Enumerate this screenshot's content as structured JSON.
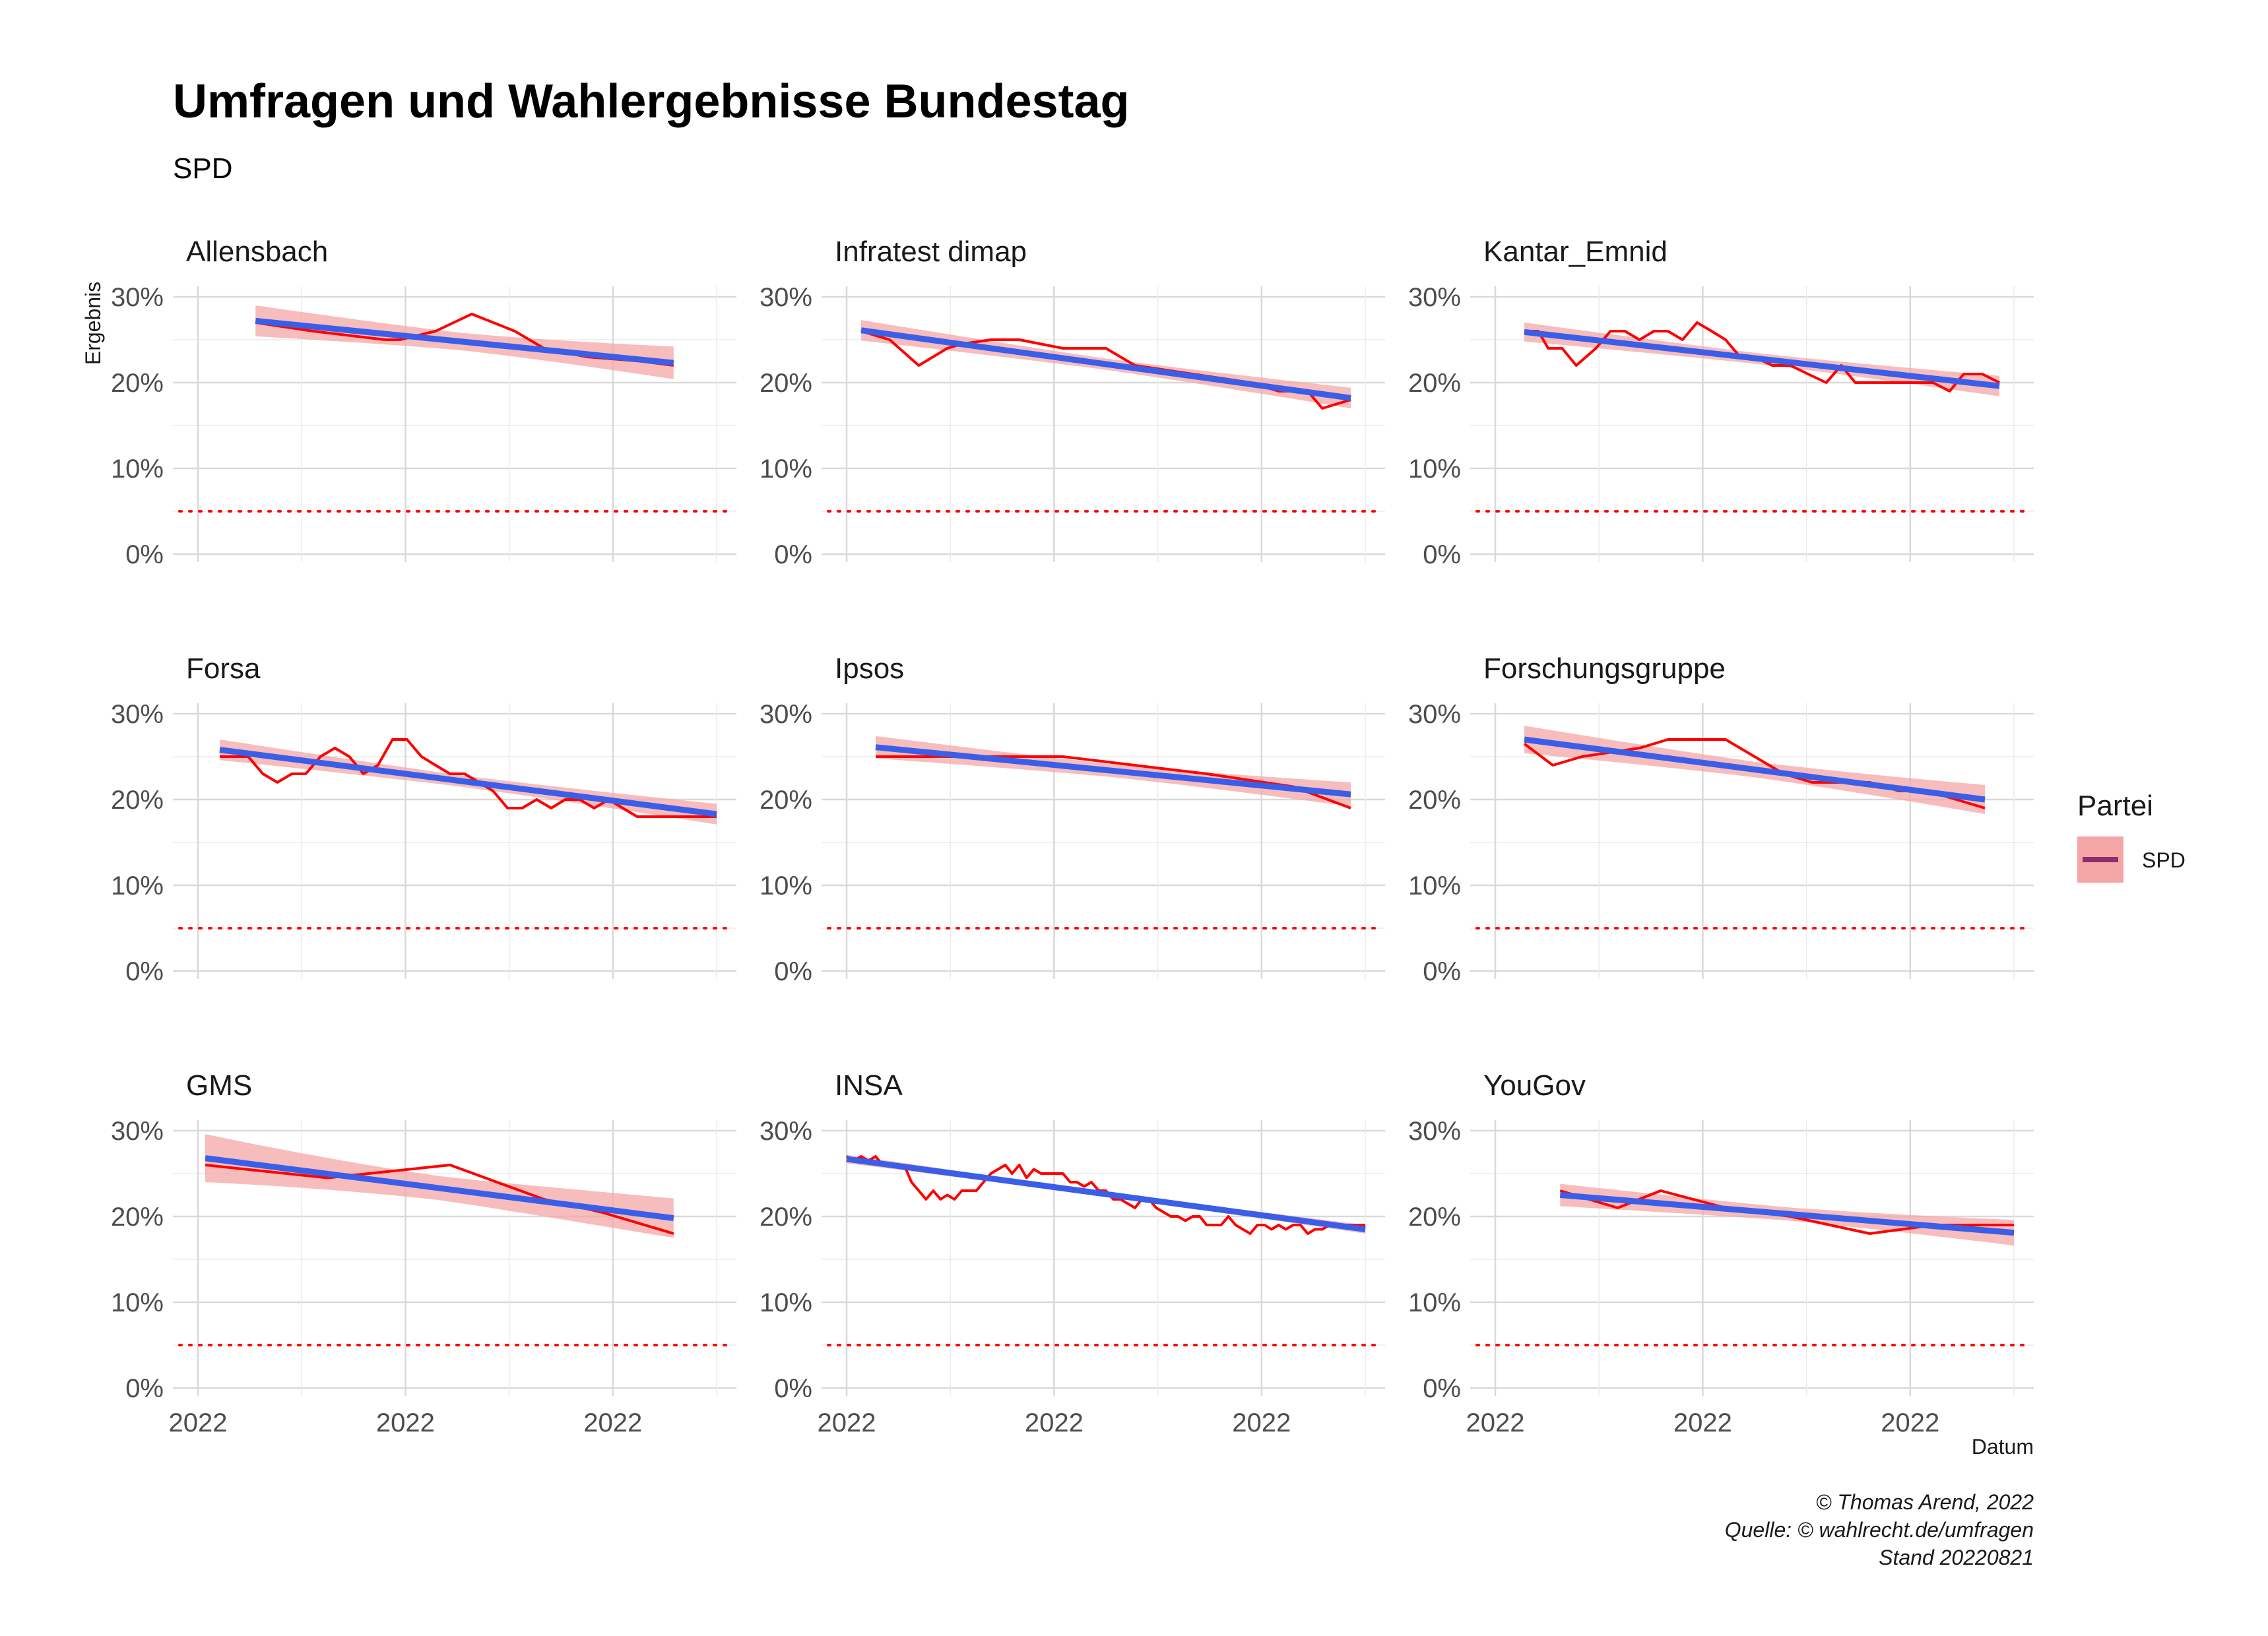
{
  "header": {
    "title": "Umfragen und Wahlergebnisse Bundestag",
    "subtitle": "SPD"
  },
  "caption": {
    "line1": "© Thomas Arend, 2022",
    "line2": "Quelle: © wahlrecht.de/umfragen",
    "line3": "Stand 20220821"
  },
  "legend": {
    "title": "Partei",
    "label": "SPD"
  },
  "colors": {
    "poll_line": "#ff0000",
    "trend_line": "#3a5ee8",
    "confidence_band": "#f4a6a6",
    "threshold_line": "#ff0000",
    "legend_key_line": "#8b2e6b",
    "grid_major": "#d9d9d9",
    "grid_minor": "#ebebeb"
  },
  "chart_data": {
    "type": "line",
    "xlabel": "Datum",
    "ylabel": "Ergebnis",
    "ylim": [
      0,
      30
    ],
    "x_domain": [
      0,
      100
    ],
    "y_ticks": [
      "0%",
      "10%",
      "20%",
      "30%"
    ],
    "x_tick_labels": [
      "2022",
      "2022",
      "2022"
    ],
    "threshold": 5,
    "grid": true,
    "legend_position": "right",
    "facets": [
      {
        "name": "Allensbach",
        "x": [
          11.1,
          22.2,
          36.1,
          38.9,
          45.8,
          52.8,
          61.1,
          66.7,
          75,
          85.3,
          91.7
        ],
        "y": [
          27,
          26,
          25,
          25,
          26,
          28,
          26,
          24,
          23,
          22.5,
          22
        ],
        "trend": [
          27.2,
          22.3
        ],
        "band_halfwidth": [
          1.8,
          1.9
        ],
        "x_range": [
          11.1,
          91.7
        ]
      },
      {
        "name": "Infratest dimap",
        "x": [
          2.8,
          8.3,
          13.9,
          19.4,
          22.2,
          27.8,
          33.3,
          41.7,
          50,
          55.6,
          66.7,
          77.8,
          83.3,
          88.9,
          91.7,
          97.2
        ],
        "y": [
          26,
          25,
          22,
          24,
          24.5,
          25,
          25,
          24,
          24,
          22,
          21,
          20,
          19,
          19,
          17,
          18
        ],
        "trend": [
          26.1,
          18.2
        ],
        "band_halfwidth": [
          1.2,
          1.2
        ],
        "x_range": [
          2.8,
          97.2
        ]
      },
      {
        "name": "Kantar_Emnid",
        "x": [
          5.6,
          8.3,
          10.2,
          12.9,
          15.6,
          19.4,
          22.2,
          25,
          27.8,
          30.6,
          33.3,
          36.1,
          38.9,
          41.7,
          44.4,
          47.2,
          50,
          53.4,
          56.9,
          60.3,
          63.8,
          66.7,
          69.4,
          72.2,
          76.4,
          80.6,
          84.4,
          87.6,
          90.3,
          93.9,
          97.2
        ],
        "y": [
          26,
          26,
          24,
          24,
          22,
          24,
          26,
          26,
          25,
          26,
          26,
          25,
          27,
          26,
          25,
          23,
          23,
          22,
          22,
          21,
          20,
          22,
          20,
          20,
          20,
          20,
          20,
          19,
          21,
          21,
          20
        ],
        "trend": [
          25.9,
          19.6
        ],
        "band_halfwidth": [
          1.1,
          1.2
        ],
        "x_range": [
          5.6,
          97.2
        ]
      },
      {
        "name": "Forsa",
        "x": [
          4.2,
          6.9,
          9.7,
          12.5,
          15.3,
          18.1,
          20.8,
          23.6,
          26.4,
          29.2,
          31.9,
          34.7,
          37.5,
          40.3,
          43.1,
          45.8,
          48.6,
          51.4,
          54.2,
          56.9,
          59.7,
          62.5,
          65.3,
          68.1,
          70.8,
          73.6,
          76.4,
          79.2,
          81.9,
          84.7,
          87.5,
          90.3,
          93.1,
          95.8,
          100
        ],
        "y": [
          25,
          25,
          25,
          23,
          22,
          23,
          23,
          25,
          26,
          25,
          23,
          24,
          27,
          27,
          25,
          24,
          23,
          23,
          22,
          21,
          19,
          19,
          20,
          19,
          20,
          20,
          19,
          20,
          19,
          18,
          18,
          18,
          18,
          18,
          18
        ],
        "trend": [
          25.8,
          18.3
        ],
        "band_halfwidth": [
          1.2,
          1.2
        ],
        "x_range": [
          4.2,
          100
        ]
      },
      {
        "name": "Ipsos",
        "x": [
          5.6,
          41.7,
          69.4,
          86.1,
          97.2
        ],
        "y": [
          25,
          25,
          23,
          21.5,
          19
        ],
        "trend": [
          26.1,
          20.6
        ],
        "band_halfwidth": [
          1.3,
          1.4
        ],
        "x_range": [
          5.6,
          97.2
        ]
      },
      {
        "name": "Forschungsgruppe",
        "x": [
          5.6,
          11.1,
          16.7,
          22.2,
          27.8,
          33.3,
          38.9,
          44.4,
          50,
          55.6,
          61.1,
          66.7,
          72.2,
          77.8,
          83.3,
          88.9,
          94.4
        ],
        "y": [
          26.5,
          24,
          25,
          25.5,
          26,
          27,
          27,
          27,
          25,
          23,
          22,
          22,
          22,
          21,
          21,
          20,
          19
        ],
        "trend": [
          27,
          20
        ],
        "band_halfwidth": [
          1.6,
          1.7
        ],
        "x_range": [
          5.6,
          94.4
        ]
      },
      {
        "name": "GMS",
        "x": [
          1.4,
          25,
          48.6,
          66.7,
          77.8,
          91.7
        ],
        "y": [
          26,
          24.5,
          26,
          22,
          20.5,
          18
        ],
        "trend": [
          26.8,
          19.8
        ],
        "band_halfwidth": [
          2.8,
          2.3
        ],
        "x_range": [
          1.4,
          91.7
        ]
      },
      {
        "name": "INSA",
        "x": [
          0,
          1.4,
          2.8,
          4.2,
          5.6,
          6.9,
          8.3,
          9.7,
          11.1,
          12.5,
          13.9,
          15.3,
          16.7,
          18.1,
          19.4,
          20.8,
          22.2,
          25,
          27.8,
          29.2,
          30.6,
          31.9,
          33.3,
          34.7,
          36.1,
          37.5,
          38.9,
          40.3,
          41.7,
          43.1,
          44.4,
          45.8,
          47.2,
          48.6,
          50,
          51.4,
          52.8,
          54.2,
          55.6,
          56.9,
          58.3,
          59.7,
          61.1,
          62.5,
          63.9,
          65.3,
          66.7,
          68.1,
          69.4,
          70.8,
          72.2,
          73.6,
          75,
          76.4,
          77.8,
          79.2,
          80.6,
          81.9,
          83.3,
          84.7,
          86.1,
          87.5,
          88.9,
          90.3,
          91.7,
          93.1,
          94.4,
          95.8,
          97.2,
          100
        ],
        "y": [
          27,
          26.5,
          27,
          26.5,
          27,
          26,
          26,
          26,
          26,
          24,
          23,
          22,
          23,
          22,
          22.5,
          22,
          23,
          23,
          25,
          25.5,
          26,
          25,
          26,
          24.5,
          25.5,
          25,
          25,
          25,
          25,
          24,
          24,
          23.5,
          24,
          23,
          23,
          22,
          22,
          21.5,
          21,
          22,
          22,
          21,
          20.5,
          20,
          20,
          19.5,
          20,
          20,
          19,
          19,
          19,
          20,
          19,
          18.5,
          18,
          19,
          19,
          18.5,
          19,
          18.5,
          19,
          19,
          18,
          18.5,
          18.5,
          19,
          19,
          19,
          19,
          19
        ],
        "trend": [
          26.7,
          18.5
        ],
        "band_halfwidth": [
          0.5,
          0.5
        ],
        "x_range": [
          0,
          100
        ]
      },
      {
        "name": "YouGov",
        "x": [
          12.5,
          23.6,
          31.9,
          44.4,
          56.9,
          72.2,
          84.7,
          100
        ],
        "y": [
          23,
          21,
          23,
          21,
          20,
          18,
          19,
          19
        ],
        "trend": [
          22.5,
          18.1
        ],
        "band_halfwidth": [
          1.3,
          1.5
        ],
        "x_range": [
          12.5,
          100
        ]
      }
    ]
  }
}
